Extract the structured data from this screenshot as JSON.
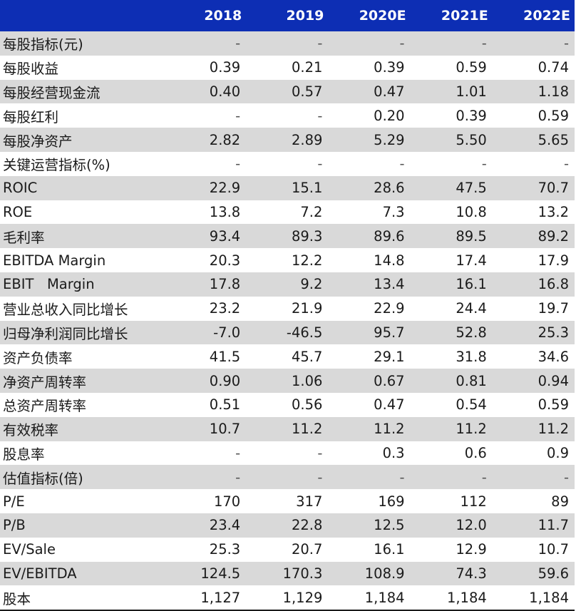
{
  "header": {
    "years": [
      "2018",
      "2019",
      "2020E",
      "2021E",
      "2022E"
    ]
  },
  "rows": [
    {
      "label": "每股指标(元)",
      "values": [
        "-",
        "-",
        "-",
        "-",
        "-"
      ]
    },
    {
      "label": "每股收益",
      "values": [
        "0.39",
        "0.21",
        "0.39",
        "0.59",
        "0.74"
      ]
    },
    {
      "label": "每股经营现金流",
      "values": [
        "0.40",
        "0.57",
        "0.47",
        "1.01",
        "1.18"
      ]
    },
    {
      "label": "每股红利",
      "values": [
        "-",
        "-",
        "0.20",
        "0.39",
        "0.59"
      ]
    },
    {
      "label": "每股净资产",
      "values": [
        "2.82",
        "2.89",
        "5.29",
        "5.50",
        "5.65"
      ]
    },
    {
      "label": "关键运营指标(%)",
      "values": [
        "-",
        "-",
        "-",
        "-",
        "-"
      ]
    },
    {
      "label": "ROIC",
      "values": [
        "22.9",
        "15.1",
        "28.6",
        "47.5",
        "70.7"
      ]
    },
    {
      "label": "ROE",
      "values": [
        "13.8",
        "7.2",
        "7.3",
        "10.8",
        "13.2"
      ]
    },
    {
      "label": "毛利率",
      "values": [
        "93.4",
        "89.3",
        "89.6",
        "89.5",
        "89.2"
      ]
    },
    {
      "label": "EBITDA Margin",
      "values": [
        "20.3",
        "12.2",
        "14.8",
        "17.4",
        "17.9"
      ]
    },
    {
      "label": "EBIT   Margin",
      "values": [
        "17.8",
        "9.2",
        "13.4",
        "16.1",
        "16.8"
      ]
    },
    {
      "label": "营业总收入同比增长",
      "values": [
        "23.2",
        "21.9",
        "22.9",
        "24.4",
        "19.7"
      ]
    },
    {
      "label": "归母净利润同比增长",
      "values": [
        "-7.0",
        "-46.5",
        "95.7",
        "52.8",
        "25.3"
      ]
    },
    {
      "label": "资产负债率",
      "values": [
        "41.5",
        "45.7",
        "29.1",
        "31.8",
        "34.6"
      ]
    },
    {
      "label": "净资产周转率",
      "values": [
        "0.90",
        "1.06",
        "0.67",
        "0.81",
        "0.94"
      ]
    },
    {
      "label": "总资产周转率",
      "values": [
        "0.51",
        "0.56",
        "0.47",
        "0.54",
        "0.59"
      ]
    },
    {
      "label": "有效税率",
      "values": [
        "10.7",
        "11.2",
        "11.2",
        "11.2",
        "11.2"
      ]
    },
    {
      "label": "股息率",
      "values": [
        "-",
        "-",
        "0.3",
        "0.6",
        "0.9"
      ]
    },
    {
      "label": "估值指标(倍)",
      "values": [
        "-",
        "-",
        "-",
        "-",
        "-"
      ]
    },
    {
      "label": "P/E",
      "values": [
        "170",
        "317",
        "169",
        "112",
        "89"
      ]
    },
    {
      "label": "P/B",
      "values": [
        "23.4",
        "22.8",
        "12.5",
        "12.0",
        "11.7"
      ]
    },
    {
      "label": "EV/Sale",
      "values": [
        "25.3",
        "20.7",
        "16.1",
        "12.9",
        "10.7"
      ]
    },
    {
      "label": "EV/EBITDA",
      "values": [
        "124.5",
        "170.3",
        "108.9",
        "74.3",
        "59.6"
      ]
    },
    {
      "label": "股本",
      "values": [
        "1,127",
        "1,129",
        "1,184",
        "1,184",
        "1,184"
      ]
    }
  ],
  "colors": {
    "header_bg": "#0d2eb4",
    "header_text": "#ffffff",
    "shade_bg": "#d9d9d9",
    "text": "#1a1a1a"
  }
}
